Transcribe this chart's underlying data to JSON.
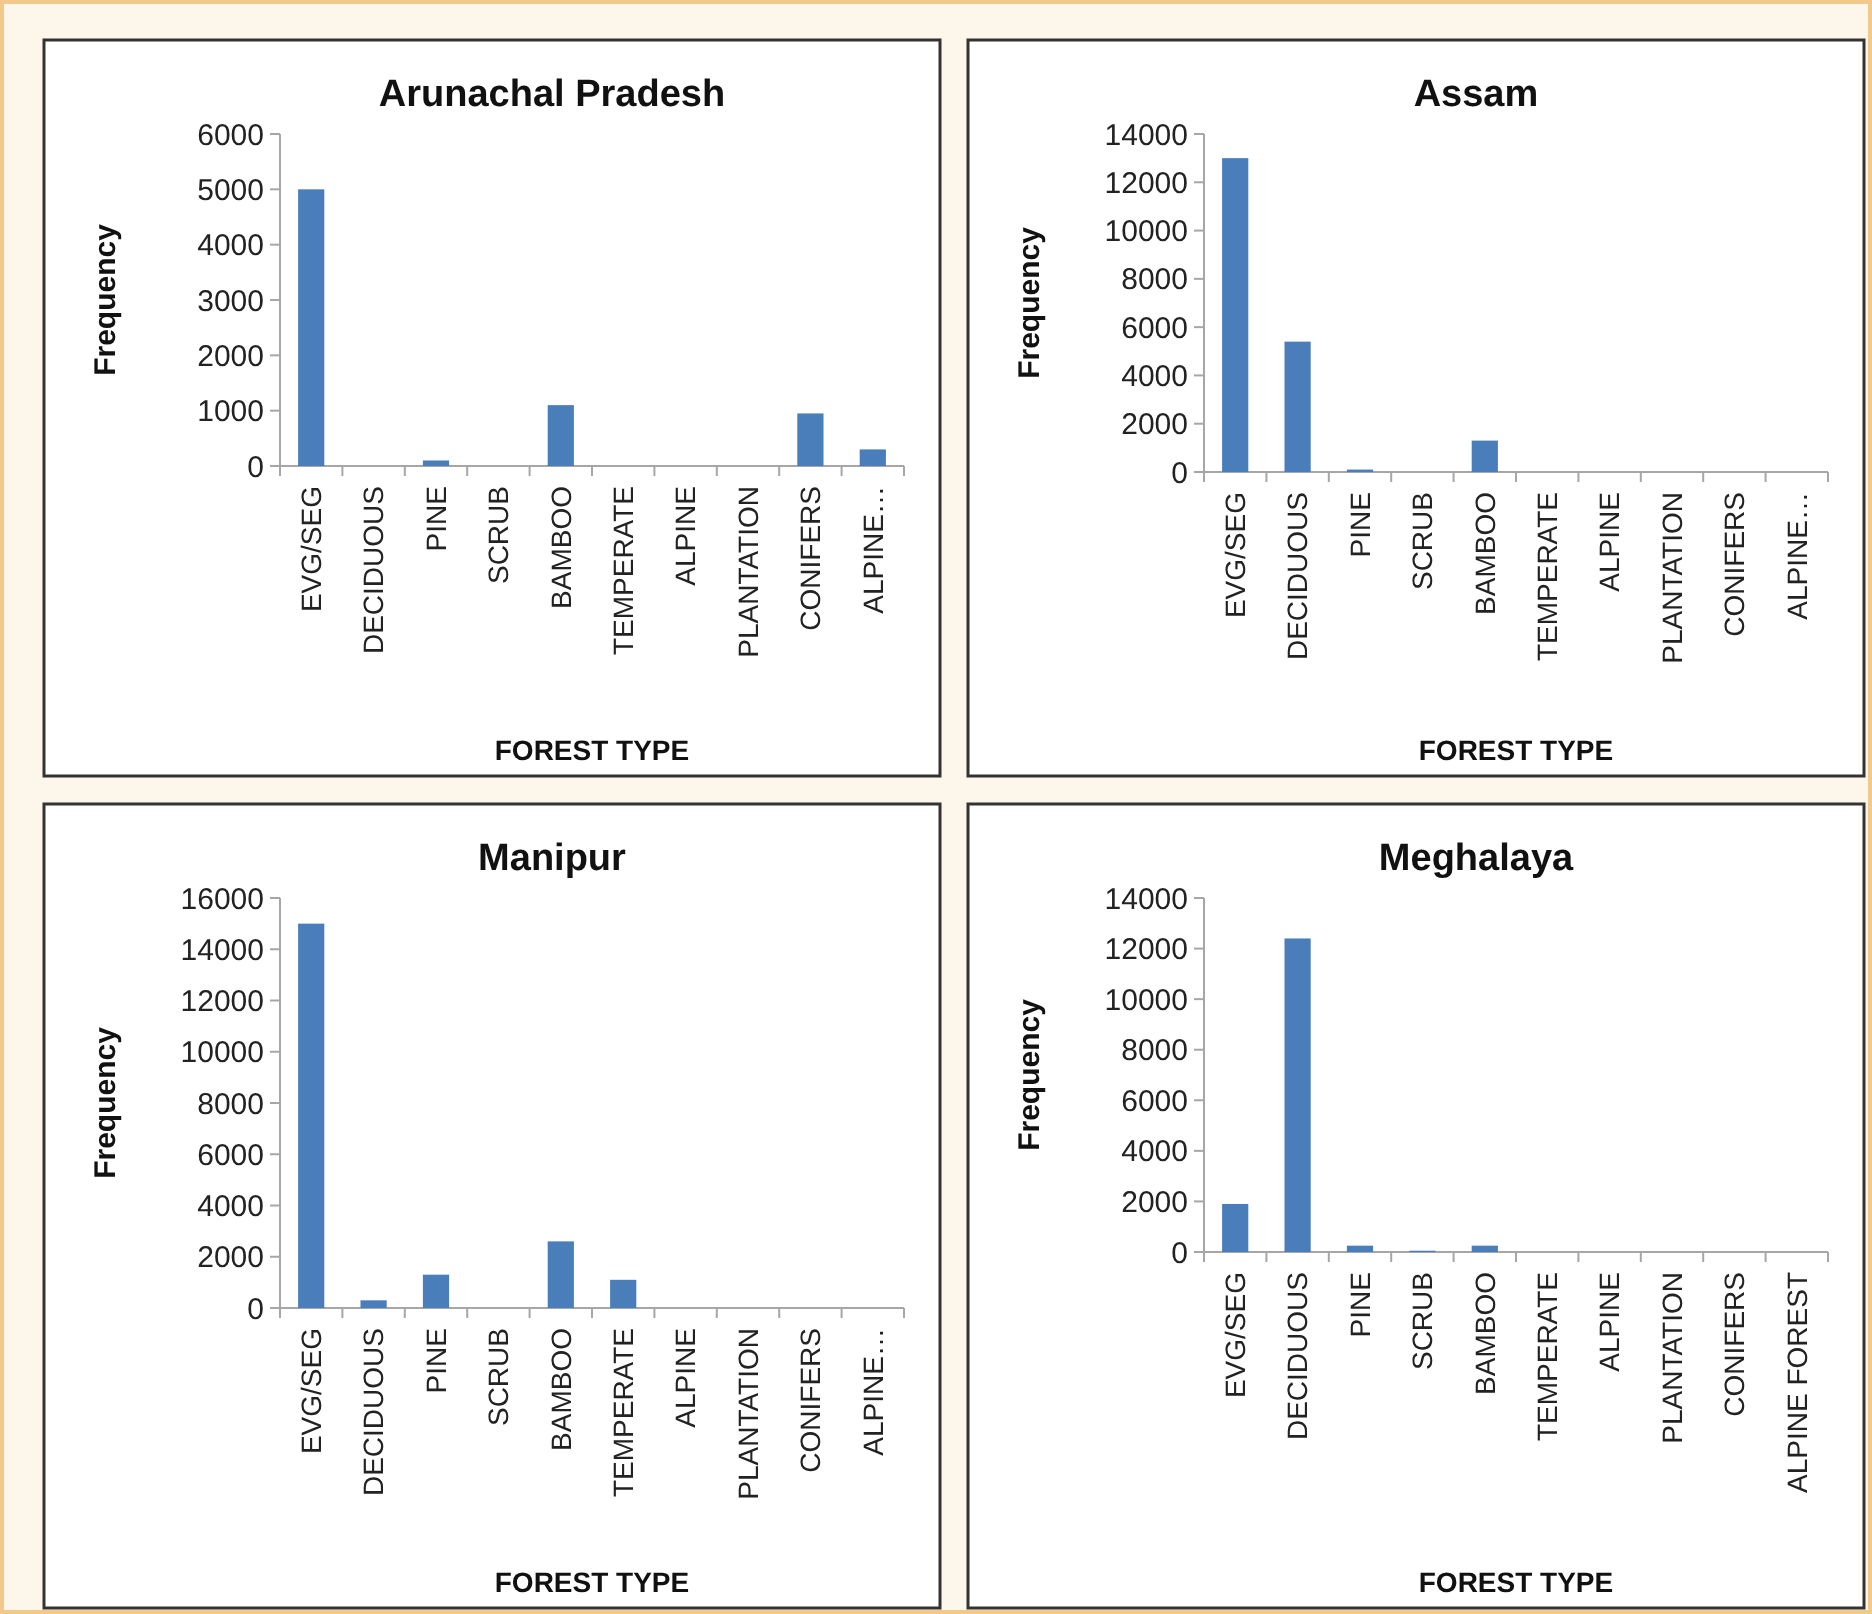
{
  "chart_data": [
    {
      "type": "bar",
      "title": "Arunachal Pradesh",
      "xlabel": "FOREST TYPE",
      "ylabel": "Frequency",
      "categories": [
        "EVG/SEG",
        "DECIDUOUS",
        "PINE",
        "SCRUB",
        "BAMBOO",
        "TEMPERATE",
        "ALPINE",
        "PLANTATION",
        "CONIFERS",
        "ALPINE…"
      ],
      "values": [
        5000,
        0,
        100,
        0,
        1100,
        0,
        0,
        0,
        950,
        300
      ],
      "color": "#4a7ebb",
      "ylim": [
        0,
        6000
      ],
      "yticks": [
        0,
        1000,
        2000,
        3000,
        4000,
        5000,
        6000
      ],
      "grid": false
    },
    {
      "type": "bar",
      "title": "Assam",
      "xlabel": "FOREST TYPE",
      "ylabel": "Frequency",
      "categories": [
        "EVG/SEG",
        "DECIDUOUS",
        "PINE",
        "SCRUB",
        "BAMBOO",
        "TEMPERATE",
        "ALPINE",
        "PLANTATION",
        "CONIFERS",
        "ALPINE…"
      ],
      "values": [
        13000,
        5400,
        100,
        0,
        1300,
        0,
        0,
        0,
        0,
        0
      ],
      "color": "#4a7ebb",
      "ylim": [
        0,
        14000
      ],
      "yticks": [
        0,
        2000,
        4000,
        6000,
        8000,
        10000,
        12000,
        14000
      ],
      "grid": false
    },
    {
      "type": "bar",
      "title": "Manipur",
      "xlabel": "FOREST TYPE",
      "ylabel": "Frequency",
      "categories": [
        "EVG/SEG",
        "DECIDUOUS",
        "PINE",
        "SCRUB",
        "BAMBOO",
        "TEMPERATE",
        "ALPINE",
        "PLANTATION",
        "CONIFERS",
        "ALPINE…"
      ],
      "values": [
        15000,
        300,
        1300,
        0,
        2600,
        1100,
        0,
        0,
        0,
        0
      ],
      "color": "#4a7ebb",
      "ylim": [
        0,
        16000
      ],
      "yticks": [
        0,
        2000,
        4000,
        6000,
        8000,
        10000,
        12000,
        14000,
        16000
      ],
      "grid": false
    },
    {
      "type": "bar",
      "title": "Meghalaya",
      "xlabel": "FOREST TYPE",
      "ylabel": "Frequency",
      "categories": [
        "EVG/SEG",
        "DECIDUOUS",
        "PINE",
        "SCRUB",
        "BAMBOO",
        "TEMPERATE",
        "ALPINE",
        "PLANTATION",
        "CONIFERS",
        "ALPINE FOREST"
      ],
      "values": [
        1900,
        12400,
        250,
        50,
        250,
        0,
        0,
        0,
        0,
        0
      ],
      "color": "#4a7ebb",
      "ylim": [
        0,
        14000
      ],
      "yticks": [
        0,
        2000,
        4000,
        6000,
        8000,
        10000,
        12000,
        14000
      ],
      "grid": false
    }
  ]
}
